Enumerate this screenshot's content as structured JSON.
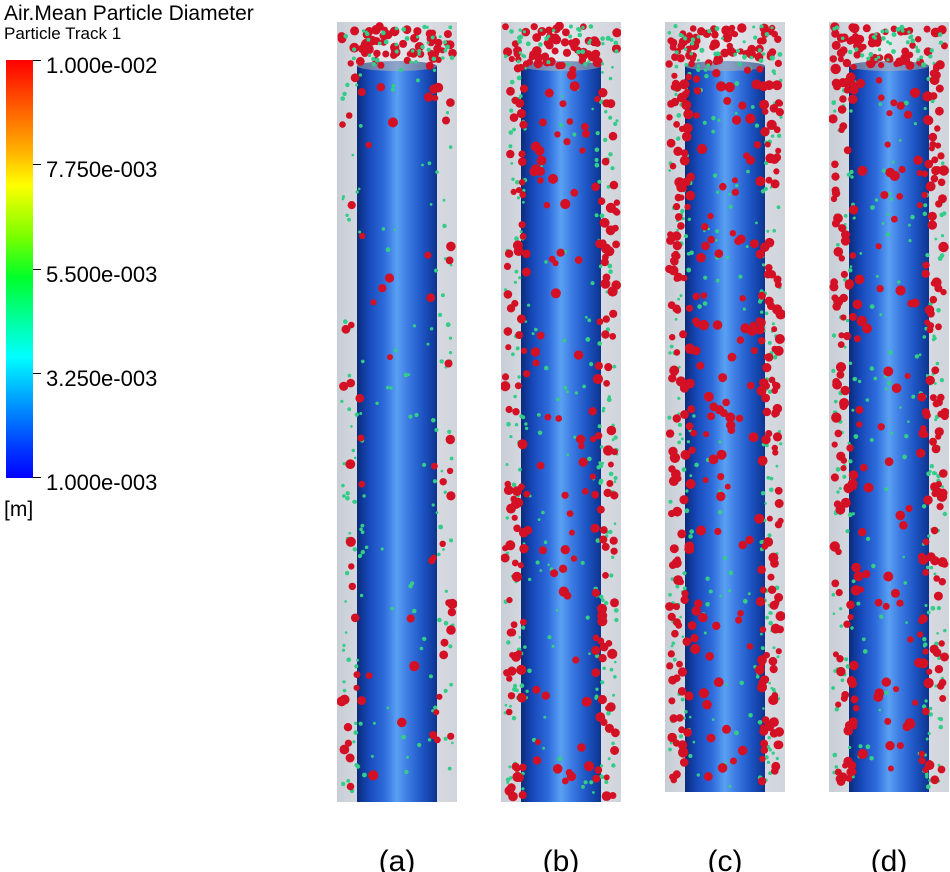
{
  "legend": {
    "title": "Air.Mean Particle Diameter",
    "subtitle": "Particle Track 1",
    "ticks": [
      "1.000e-002",
      "7.750e-003",
      "5.500e-003",
      "3.250e-003",
      "1.000e-003"
    ],
    "unit": "[m]",
    "colormap": [
      "#0000ff",
      "#00ffff",
      "#00ff2a",
      "#ffff00",
      "#ff0000"
    ]
  },
  "panels": [
    {
      "caption": "(a)",
      "particle_density": "low"
    },
    {
      "caption": "(b)",
      "particle_density": "medium"
    },
    {
      "caption": "(c)",
      "particle_density": "high"
    },
    {
      "caption": "(d)",
      "particle_density": "medium-high"
    }
  ],
  "colors": {
    "large_particle": "#d41025",
    "small_particle": "#33cc88",
    "cylinder": "#2e6bdc",
    "domain_background": "#d9dde3"
  }
}
